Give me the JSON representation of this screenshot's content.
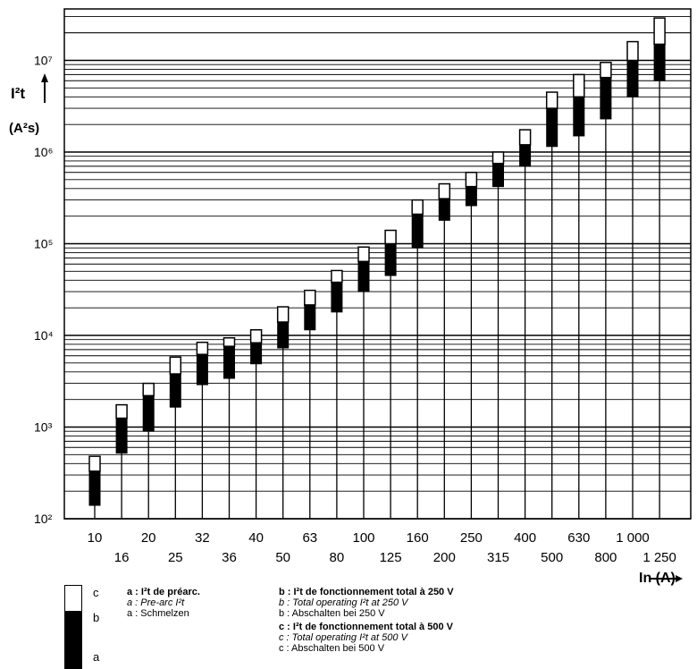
{
  "chart_data": {
    "type": "stacked-range-bar",
    "scale": "log",
    "ylim": [
      100,
      20000000
    ],
    "ylabel_line1": "I²t",
    "ylabel_line2": "(A²s)",
    "xlabel": "In (A)",
    "y_ticks": [
      "10²",
      "10³",
      "10⁴",
      "10⁵",
      "10⁶",
      "10⁷"
    ],
    "y_tick_values": [
      100,
      1000,
      10000,
      100000,
      1000000,
      10000000
    ],
    "categories_upper": [
      "10",
      "20",
      "32",
      "40",
      "63",
      "100",
      "160",
      "250",
      "400",
      "630",
      "1 000"
    ],
    "categories_lower": [
      "16",
      "25",
      "36",
      "50",
      "80",
      "125",
      "200",
      "315",
      "500",
      "800",
      "1 250"
    ],
    "bars": [
      {
        "in": "10",
        "a": 140,
        "b": 330,
        "c": 480
      },
      {
        "in": "16",
        "a": 520,
        "b": 1250,
        "c": 1750
      },
      {
        "in": "20",
        "a": 900,
        "b": 2200,
        "c": 3000
      },
      {
        "in": "25",
        "a": 1650,
        "b": 3800,
        "c": 5800
      },
      {
        "in": "32",
        "a": 2900,
        "b": 6200,
        "c": 8400
      },
      {
        "in": "36",
        "a": 3400,
        "b": 7600,
        "c": 9400
      },
      {
        "in": "40",
        "a": 4900,
        "b": 8300,
        "c": 11500
      },
      {
        "in": "50",
        "a": 7300,
        "b": 14000,
        "c": 20500
      },
      {
        "in": "63",
        "a": 11500,
        "b": 21500,
        "c": 31000
      },
      {
        "in": "80",
        "a": 18000,
        "b": 38000,
        "c": 51000
      },
      {
        "in": "100",
        "a": 30000,
        "b": 64000,
        "c": 92000
      },
      {
        "in": "125",
        "a": 45000,
        "b": 100000,
        "c": 140000
      },
      {
        "in": "160",
        "a": 90000,
        "b": 210000,
        "c": 300000
      },
      {
        "in": "200",
        "a": 180000,
        "b": 310000,
        "c": 450000
      },
      {
        "in": "250",
        "a": 260000,
        "b": 420000,
        "c": 600000
      },
      {
        "in": "315",
        "a": 420000,
        "b": 750000,
        "c": 1000000
      },
      {
        "in": "400",
        "a": 700000,
        "b": 1200000,
        "c": 1750000
      },
      {
        "in": "500",
        "a": 1150000,
        "b": 3000000,
        "c": 4500000
      },
      {
        "in": "630",
        "a": 1500000,
        "b": 4000000,
        "c": 7000000
      },
      {
        "in": "800",
        "a": 2300000,
        "b": 6500000,
        "c": 9500000
      },
      {
        "in": "1 000",
        "a": 4000000,
        "b": 10000000,
        "c": 16000000
      },
      {
        "in": "1 250",
        "a": 6000000,
        "b": 15000000,
        "c": 29000000
      }
    ]
  },
  "legend": {
    "sym_c": "c",
    "sym_b": "b",
    "sym_a": "a",
    "col1": {
      "fr": "a : I²t de préarc.",
      "en": "a : Pre-arc I²t",
      "de": "a : Schmelzen"
    },
    "col2": {
      "b_fr": "b : I²t de fonctionnement total à 250 V",
      "b_en": "b : Total operating I²t at 250 V",
      "b_de": "b : Abschalten bei 250 V",
      "c_fr": "c : I²t de fonctionnement total à 500 V",
      "c_en": "c : Total operating I²t at 500 V",
      "c_de": "c : Abschalten bei 500 V"
    }
  }
}
